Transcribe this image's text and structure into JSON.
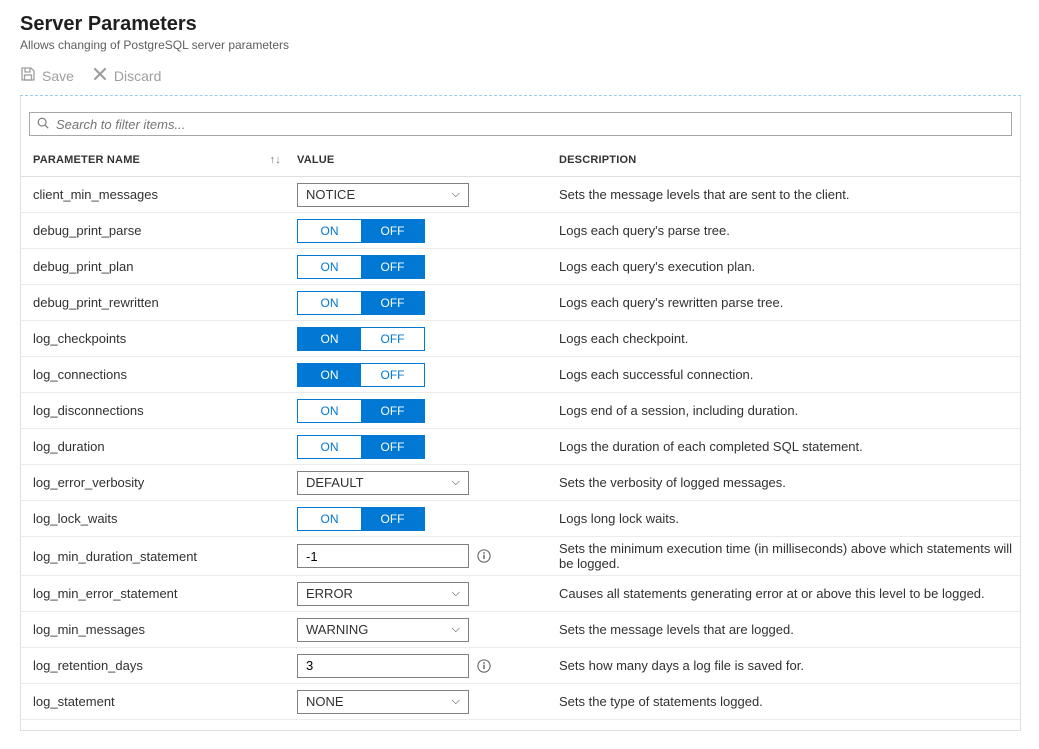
{
  "header": {
    "title": "Server Parameters",
    "subtitle": "Allows changing of PostgreSQL server parameters"
  },
  "toolbar": {
    "save_label": "Save",
    "discard_label": "Discard"
  },
  "search": {
    "placeholder": "Search to filter items..."
  },
  "columns": {
    "name": "PARAMETER NAME",
    "value": "VALUE",
    "description": "DESCRIPTION"
  },
  "toggle_labels": {
    "on": "ON",
    "off": "OFF"
  },
  "colors": {
    "accent": "#0078d4",
    "text": "#323130",
    "muted": "#a19f9d",
    "border": "#e1dfdd"
  },
  "rows": [
    {
      "name": "client_min_messages",
      "type": "select",
      "value": "NOTICE",
      "desc": "Sets the message levels that are sent to the client."
    },
    {
      "name": "debug_print_parse",
      "type": "toggle",
      "value": "OFF",
      "desc": "Logs each query's parse tree."
    },
    {
      "name": "debug_print_plan",
      "type": "toggle",
      "value": "OFF",
      "desc": "Logs each query's execution plan."
    },
    {
      "name": "debug_print_rewritten",
      "type": "toggle",
      "value": "OFF",
      "desc": "Logs each query's rewritten parse tree."
    },
    {
      "name": "log_checkpoints",
      "type": "toggle",
      "value": "ON",
      "desc": "Logs each checkpoint."
    },
    {
      "name": "log_connections",
      "type": "toggle",
      "value": "ON",
      "desc": "Logs each successful connection."
    },
    {
      "name": "log_disconnections",
      "type": "toggle",
      "value": "OFF",
      "desc": "Logs end of a session, including duration."
    },
    {
      "name": "log_duration",
      "type": "toggle",
      "value": "OFF",
      "desc": "Logs the duration of each completed SQL statement."
    },
    {
      "name": "log_error_verbosity",
      "type": "select",
      "value": "DEFAULT",
      "desc": "Sets the verbosity of logged messages."
    },
    {
      "name": "log_lock_waits",
      "type": "toggle",
      "value": "OFF",
      "desc": "Logs long lock waits."
    },
    {
      "name": "log_min_duration_statement",
      "type": "text",
      "value": "-1",
      "info": true,
      "desc": "Sets the minimum execution time (in milliseconds) above which statements will be logged."
    },
    {
      "name": "log_min_error_statement",
      "type": "select",
      "value": "ERROR",
      "desc": "Causes all statements generating error at or above this level to be logged."
    },
    {
      "name": "log_min_messages",
      "type": "select",
      "value": "WARNING",
      "desc": "Sets the message levels that are logged."
    },
    {
      "name": "log_retention_days",
      "type": "text",
      "value": "3",
      "info": true,
      "desc": "Sets how many days a log file is saved for."
    },
    {
      "name": "log_statement",
      "type": "select",
      "value": "NONE",
      "desc": "Sets the type of statements logged."
    }
  ]
}
